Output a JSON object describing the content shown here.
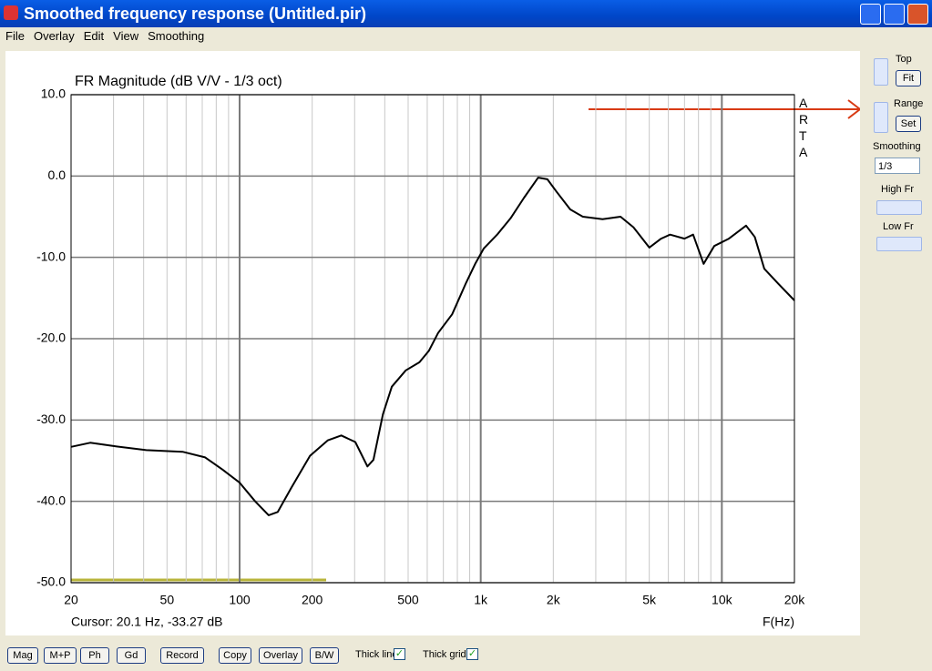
{
  "window": {
    "title": "Smoothed frequency response (Untitled.pir)"
  },
  "menu": [
    "File",
    "Overlay",
    "Edit",
    "View",
    "Smoothing"
  ],
  "chart_data": {
    "type": "line",
    "title": "FR Magnitude (dB V/V - 1/3 oct)",
    "x": [
      20,
      24,
      30,
      41,
      58,
      72,
      85,
      100,
      116,
      132,
      144,
      164,
      196,
      232,
      264,
      302,
      339,
      359,
      393,
      428,
      489,
      557,
      609,
      666,
      761,
      870,
      949,
      1030,
      1170,
      1330,
      1510,
      1730,
      1890,
      2060,
      2350,
      2650,
      3200,
      3800,
      4300,
      5000,
      5600,
      6100,
      7000,
      7600,
      8400,
      9300,
      10700,
      12600,
      13700,
      15000,
      17200,
      20000
    ],
    "values": [
      -33.3,
      -32.8,
      -33.2,
      -33.7,
      -33.9,
      -34.6,
      -36.1,
      -37.7,
      -40.0,
      -41.7,
      -41.3,
      -38.3,
      -34.4,
      -32.5,
      -31.9,
      -32.7,
      -35.7,
      -34.9,
      -29.3,
      -25.9,
      -23.9,
      -22.9,
      -21.5,
      -19.3,
      -17.0,
      -13.1,
      -10.8,
      -8.9,
      -7.2,
      -5.2,
      -2.7,
      -0.2,
      -0.4,
      -1.9,
      -4.1,
      -5.0,
      -5.3,
      -5.0,
      -6.3,
      -8.8,
      -7.7,
      -7.2,
      -7.7,
      -7.2,
      -10.8,
      -8.6,
      -7.7,
      -6.1,
      -7.5,
      -11.4,
      -13.3,
      -15.3
    ],
    "color": "#000000",
    "log_x": true,
    "grid": true,
    "xlim": [
      20,
      20000
    ],
    "ylim": [
      -50,
      10
    ],
    "xticks": [
      20,
      50,
      100,
      200,
      500,
      {
        "value": 1000,
        "label": "1k"
      },
      {
        "value": 2000,
        "label": "2k"
      },
      {
        "value": 5000,
        "label": "5k"
      },
      {
        "value": 10000,
        "label": "10k"
      },
      {
        "value": 20000,
        "label": "20k"
      }
    ],
    "xgrid": [
      30,
      40,
      60,
      70,
      80,
      90,
      300,
      400,
      600,
      700,
      800,
      900,
      3000,
      4000,
      6000,
      7000,
      8000,
      9000
    ],
    "yticks": [
      {
        "value": 10,
        "label": "10.0"
      },
      {
        "value": 0,
        "label": "0.0"
      },
      {
        "value": -10,
        "label": "-10.0"
      },
      {
        "value": -20,
        "label": "-20.0"
      },
      {
        "value": -30,
        "label": "-30.0"
      },
      {
        "value": -40,
        "label": "-40.0"
      },
      {
        "value": -50,
        "label": "-50.0"
      }
    ],
    "x_label": "F(Hz)",
    "cursor_readout": "Cursor: 20.1 Hz, -33.27 dB",
    "watermark": "ARTA"
  },
  "side_panel": {
    "top": "Top",
    "fit": "Fit",
    "range": "Range",
    "set": "Set",
    "smoothing": "Smoothing",
    "smoothing_value": "1/3",
    "high_fr": "High Fr",
    "low_fr": "Low Fr"
  },
  "toolbar": {
    "buttons": [
      "Mag",
      "M+P",
      "Ph",
      "Gd",
      "Record",
      "Copy",
      "Overlay",
      "B/W"
    ],
    "checkboxes": [
      "Thick line",
      "Thick grid"
    ]
  }
}
